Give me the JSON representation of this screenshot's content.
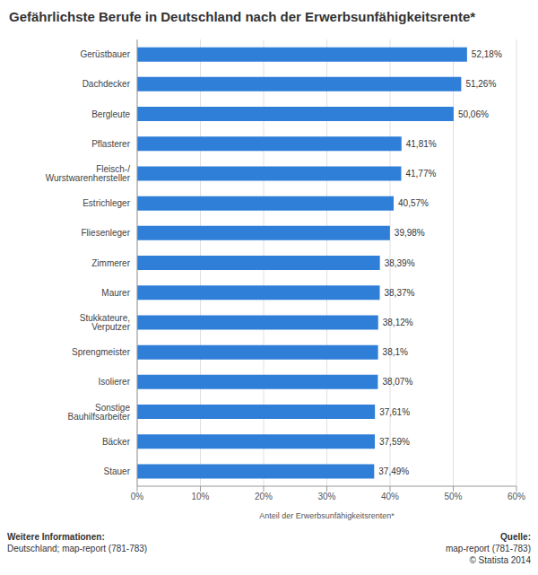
{
  "chart_data": {
    "type": "bar",
    "orientation": "horizontal",
    "title": "Gefährlichste Berufe in Deutschland nach der Erwerbsunfähigkeitsrente*",
    "x_label": "Anteil der Erwerbsunfähigkeitsrenten*",
    "categories": [
      "Gerüstbauer",
      "Dachdecker",
      "Bergleute",
      "Pflasterer",
      "Fleisch-/ Wurstwarenhersteller",
      "Estrichleger",
      "Fliesenleger",
      "Zimmerer",
      "Maurer",
      "Stukkateure, Verputzer",
      "Sprengmeister",
      "Isolierer",
      "Sonstige Bauhilfsarbeiter",
      "Bäcker",
      "Stauer"
    ],
    "values": [
      52.18,
      51.26,
      50.06,
      41.81,
      41.77,
      40.57,
      39.98,
      38.39,
      38.37,
      38.12,
      38.1,
      38.07,
      37.61,
      37.59,
      37.49
    ],
    "value_labels": [
      "52,18%",
      "51,26%",
      "50,06%",
      "41,81%",
      "41,77%",
      "40,57%",
      "39,98%",
      "38,39%",
      "38,37%",
      "38,12%",
      "38,1%",
      "38,07%",
      "37,61%",
      "37,59%",
      "37,49%"
    ],
    "data_labels": true,
    "color": "#2f7ed8",
    "xlim": [
      0,
      60
    ],
    "xticks": [
      {
        "value": 0,
        "label": "0%"
      },
      {
        "value": 10,
        "label": "10%"
      },
      {
        "value": 20,
        "label": "20%"
      },
      {
        "value": 30,
        "label": "30%"
      },
      {
        "value": 40,
        "label": "40%"
      },
      {
        "value": 50,
        "label": "50%"
      },
      {
        "value": 60,
        "label": "60%"
      }
    ],
    "grid": true,
    "annotations": [
      "Weitere Informationen:",
      "Deutschland; map-report (781-783)",
      "Quelle:",
      "map-report (781-783)",
      "© Statista 2014"
    ]
  }
}
